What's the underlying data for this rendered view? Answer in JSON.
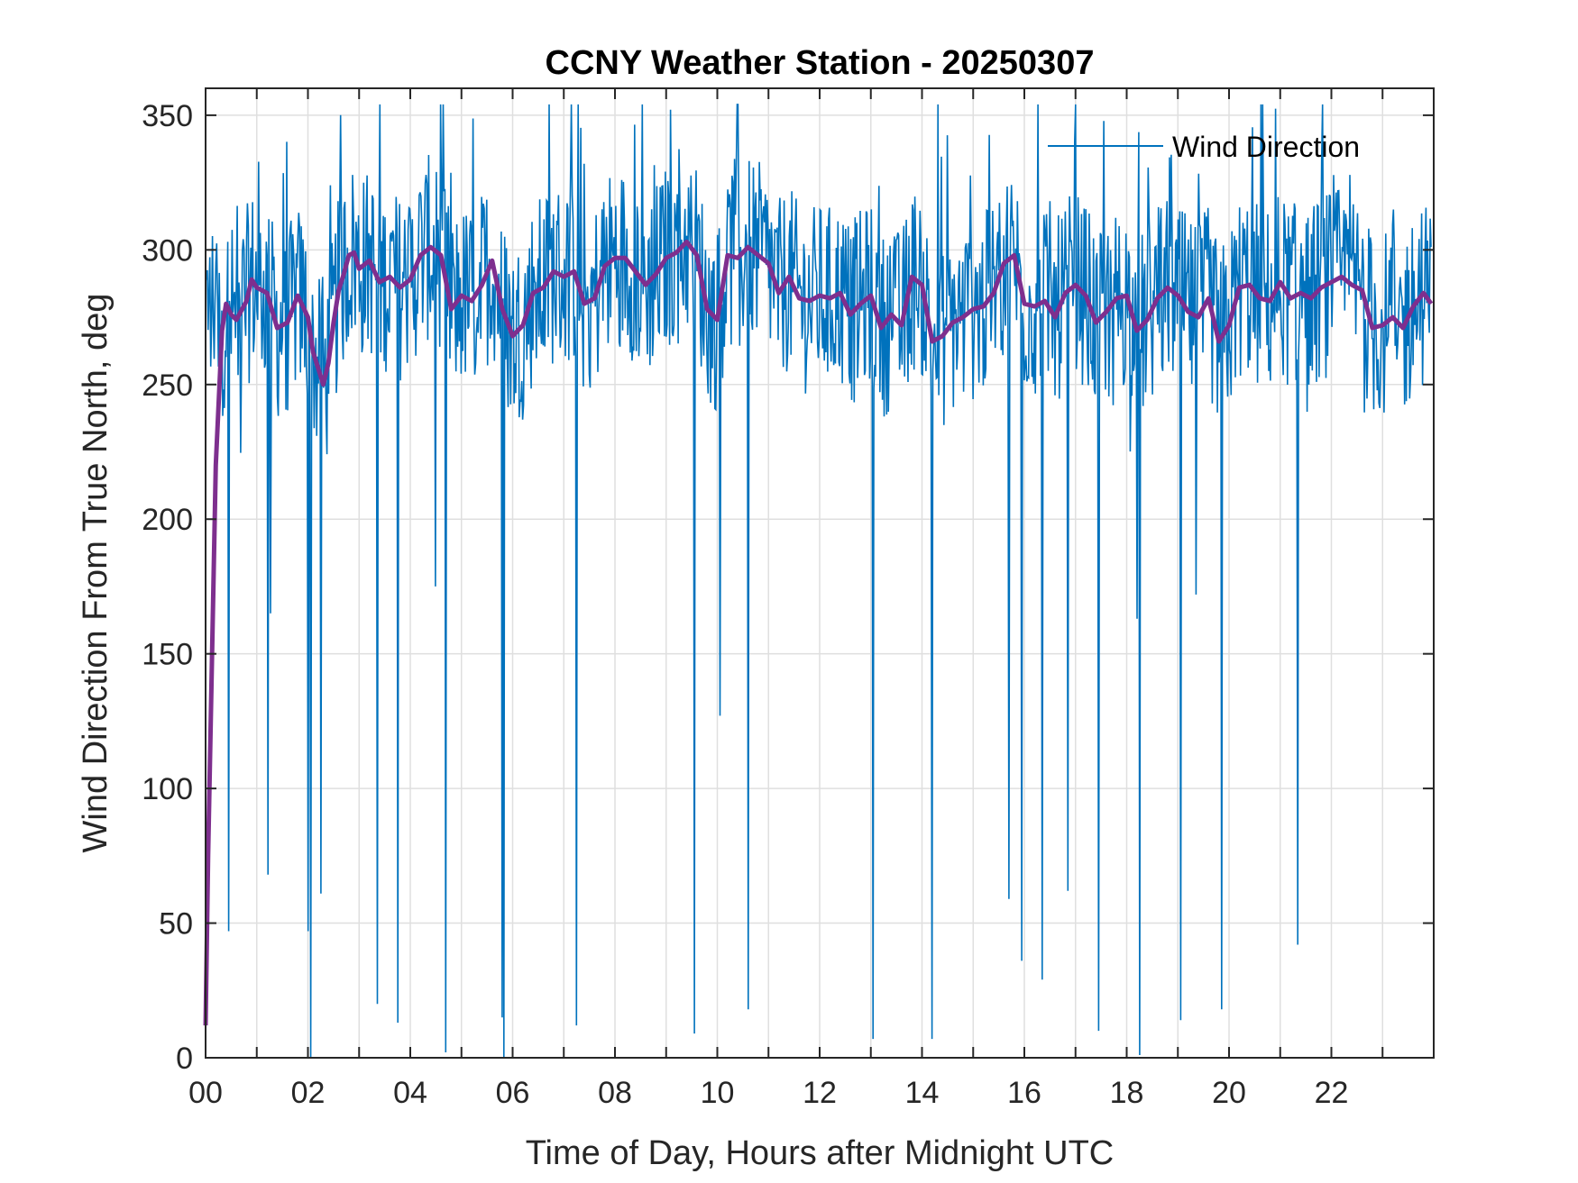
{
  "chart_data": {
    "type": "line",
    "title": "CCNY Weather Station - 20250307",
    "xlabel": "Time of Day, Hours after Midnight UTC",
    "ylabel": "Wind Direction From True North, deg",
    "xlim": [
      0,
      24
    ],
    "ylim": [
      0,
      360
    ],
    "grid": true,
    "x_ticks": [
      0,
      2,
      4,
      6,
      8,
      10,
      12,
      14,
      16,
      18,
      20,
      22
    ],
    "x_tick_labels": [
      "00",
      "02",
      "04",
      "06",
      "08",
      "10",
      "12",
      "14",
      "16",
      "18",
      "20",
      "22"
    ],
    "y_ticks": [
      0,
      50,
      100,
      150,
      200,
      250,
      300,
      350
    ],
    "y_tick_labels": [
      "0",
      "50",
      "100",
      "150",
      "200",
      "250",
      "300",
      "350"
    ],
    "legend": {
      "placement": "top-right",
      "entries": [
        "Wind Direction"
      ]
    },
    "colors": {
      "raw": "#0072BD",
      "smoothed": "#7E2F8E",
      "grid": "#dfdfdf",
      "axes": "#262626"
    },
    "series": [
      {
        "name": "Wind Direction",
        "type": "raw_samples",
        "sample_interval_hours": 0.0167,
        "baseline_deg": 285,
        "noise_range_deg": [
          255,
          335
        ],
        "drops": [
          {
            "x": 0.45,
            "y": 47
          },
          {
            "x": 1.22,
            "y": 68
          },
          {
            "x": 1.27,
            "y": 165
          },
          {
            "x": 2.0,
            "y": 47
          },
          {
            "x": 2.05,
            "y": 0
          },
          {
            "x": 2.25,
            "y": 61
          },
          {
            "x": 3.35,
            "y": 20
          },
          {
            "x": 3.75,
            "y": 13
          },
          {
            "x": 4.5,
            "y": 175
          },
          {
            "x": 4.7,
            "y": 2
          },
          {
            "x": 5.8,
            "y": 15
          },
          {
            "x": 5.82,
            "y": 0
          },
          {
            "x": 7.25,
            "y": 12
          },
          {
            "x": 9.55,
            "y": 9
          },
          {
            "x": 10.05,
            "y": 127
          },
          {
            "x": 10.6,
            "y": 18
          },
          {
            "x": 13.05,
            "y": 7
          },
          {
            "x": 14.2,
            "y": 7
          },
          {
            "x": 15.7,
            "y": 59
          },
          {
            "x": 15.95,
            "y": 36
          },
          {
            "x": 16.35,
            "y": 29
          },
          {
            "x": 16.85,
            "y": 62
          },
          {
            "x": 17.45,
            "y": 10
          },
          {
            "x": 18.2,
            "y": 163
          },
          {
            "x": 18.25,
            "y": 1
          },
          {
            "x": 19.05,
            "y": 14
          },
          {
            "x": 19.35,
            "y": 172
          },
          {
            "x": 19.85,
            "y": 18
          },
          {
            "x": 21.35,
            "y": 42
          }
        ]
      },
      {
        "name": "Smoothed",
        "type": "line",
        "x": [
          0,
          0.05,
          0.2,
          0.32,
          0.4,
          0.5,
          0.6,
          0.8,
          0.9,
          1.0,
          1.2,
          1.4,
          1.6,
          1.8,
          2.0,
          2.1,
          2.2,
          2.3,
          2.4,
          2.5,
          2.6,
          2.7,
          2.8,
          2.9,
          3.0,
          3.2,
          3.4,
          3.6,
          3.8,
          4.0,
          4.2,
          4.4,
          4.6,
          4.8,
          5.0,
          5.2,
          5.4,
          5.6,
          5.8,
          6.0,
          6.2,
          6.4,
          6.6,
          6.8,
          7.0,
          7.2,
          7.4,
          7.6,
          7.8,
          8.0,
          8.2,
          8.4,
          8.6,
          8.8,
          9.0,
          9.2,
          9.4,
          9.6,
          9.8,
          10.0,
          10.2,
          10.4,
          10.6,
          10.8,
          11.0,
          11.2,
          11.4,
          11.6,
          11.8,
          12.0,
          12.2,
          12.4,
          12.6,
          12.8,
          13.0,
          13.2,
          13.4,
          13.6,
          13.8,
          14.0,
          14.2,
          14.4,
          14.6,
          14.8,
          15.0,
          15.2,
          15.4,
          15.6,
          15.8,
          16.0,
          16.2,
          16.4,
          16.6,
          16.8,
          17.0,
          17.2,
          17.4,
          17.6,
          17.8,
          18.0,
          18.2,
          18.4,
          18.6,
          18.8,
          19.0,
          19.2,
          19.4,
          19.6,
          19.8,
          20.0,
          20.2,
          20.4,
          20.6,
          20.8,
          21.0,
          21.2,
          21.4,
          21.6,
          21.8,
          22.0,
          22.2,
          22.4,
          22.6,
          22.8,
          23.0,
          23.2,
          23.4,
          23.6,
          23.8,
          23.95
        ],
        "y": [
          12,
          75,
          220,
          270,
          280,
          276,
          274,
          281,
          289,
          286,
          284,
          271,
          273,
          283,
          275,
          262,
          256,
          250,
          258,
          273,
          285,
          291,
          298,
          299,
          293,
          296,
          288,
          290,
          286,
          289,
          298,
          301,
          298,
          278,
          283,
          281,
          287,
          296,
          278,
          268,
          272,
          284,
          286,
          292,
          290,
          292,
          280,
          282,
          294,
          297,
          297,
          292,
          287,
          291,
          297,
          299,
          303,
          298,
          278,
          274,
          298,
          297,
          301,
          298,
          295,
          284,
          290,
          282,
          281,
          283,
          282,
          284,
          276,
          280,
          283,
          271,
          276,
          272,
          290,
          287,
          266,
          268,
          273,
          275,
          278,
          279,
          284,
          295,
          298,
          280,
          279,
          281,
          275,
          284,
          287,
          283,
          273,
          277,
          282,
          283,
          270,
          274,
          282,
          286,
          283,
          277,
          275,
          282,
          266,
          272,
          286,
          287,
          282,
          281,
          288,
          282,
          284,
          282,
          286,
          288,
          290,
          287,
          285,
          271,
          272,
          275,
          271,
          279,
          284,
          280
        ]
      }
    ]
  }
}
